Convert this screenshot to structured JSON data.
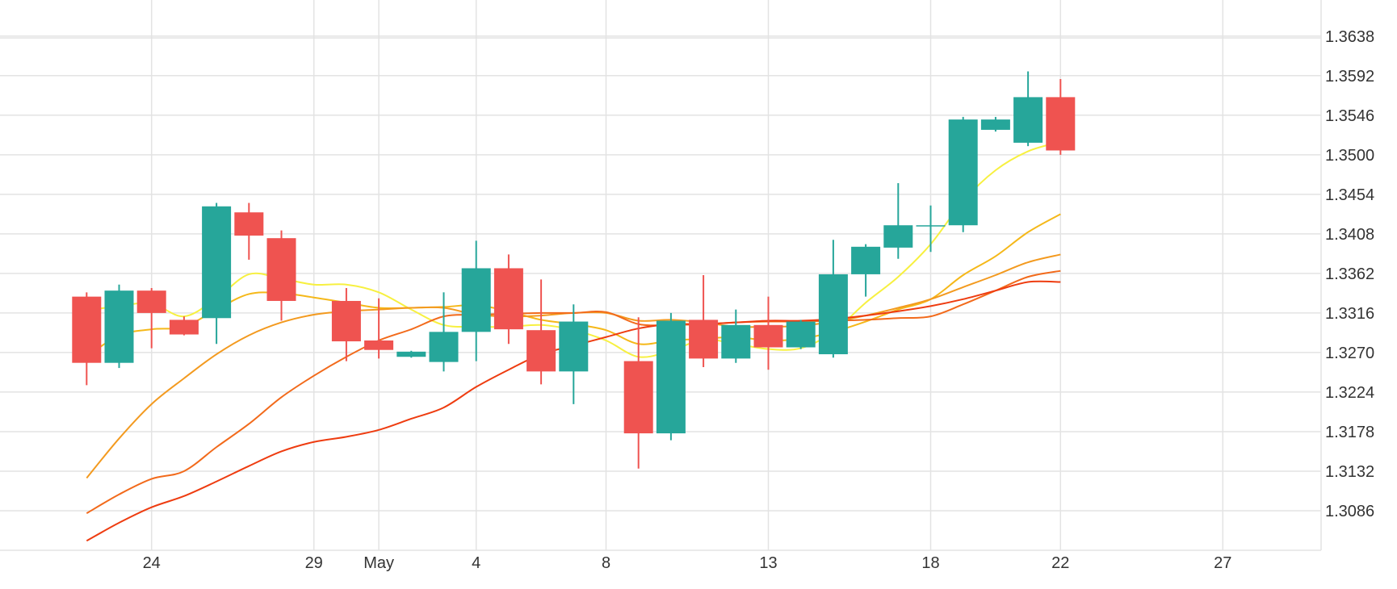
{
  "chart_data": {
    "type": "candlestick",
    "title": "",
    "xlabel": "",
    "ylabel": "",
    "ylim": [
      1.304,
      1.368
    ],
    "y_ticks": [
      1.3086,
      1.3132,
      1.3178,
      1.3224,
      1.327,
      1.3316,
      1.3362,
      1.3408,
      1.3454,
      1.35,
      1.3546,
      1.3592,
      1.3638
    ],
    "y_tick_labels": [
      "1.3086",
      "1.3132",
      "1.3178",
      "1.3224",
      "1.3270",
      "1.3316",
      "1.3362",
      "1.3408",
      "1.3454",
      "1.3500",
      "1.3546",
      "1.3592",
      "1.3638"
    ],
    "x_ticks": [
      {
        "label": "24",
        "day": 1
      },
      {
        "label": "29",
        "day": 6
      },
      {
        "label": "May",
        "day": 8
      },
      {
        "label": "4",
        "day": 11
      },
      {
        "label": "8",
        "day": 15
      },
      {
        "label": "13",
        "day": 20
      },
      {
        "label": "18",
        "day": 25
      },
      {
        "label": "22",
        "day": 29
      },
      {
        "label": "27",
        "day": 34
      }
    ],
    "grid": true,
    "colors": {
      "up": "#26a69a",
      "down": "#ef5350",
      "grid": "#e3e3e3",
      "axis_text": "#333333"
    },
    "candles": [
      {
        "day": -1,
        "o": 1.3335,
        "h": 1.334,
        "l": 1.3232,
        "c": 1.3258
      },
      {
        "day": 0,
        "o": 1.3258,
        "h": 1.3349,
        "l": 1.3252,
        "c": 1.3342
      },
      {
        "day": 1,
        "o": 1.3342,
        "h": 1.3345,
        "l": 1.3275,
        "c": 1.3316
      },
      {
        "day": 2,
        "o": 1.3308,
        "h": 1.3312,
        "l": 1.329,
        "c": 1.3291
      },
      {
        "day": 3,
        "o": 1.331,
        "h": 1.3444,
        "l": 1.328,
        "c": 1.344
      },
      {
        "day": 4,
        "o": 1.3433,
        "h": 1.3444,
        "l": 1.3378,
        "c": 1.3406
      },
      {
        "day": 5,
        "o": 1.3403,
        "h": 1.3412,
        "l": 1.3307,
        "c": 1.333
      },
      {
        "day": 7,
        "o": 1.333,
        "h": 1.3345,
        "l": 1.326,
        "c": 1.3283
      },
      {
        "day": 8,
        "o": 1.3284,
        "h": 1.3333,
        "l": 1.3263,
        "c": 1.3273
      },
      {
        "day": 9,
        "o": 1.3265,
        "h": 1.3272,
        "l": 1.3264,
        "c": 1.3271
      },
      {
        "day": 10,
        "o": 1.3259,
        "h": 1.334,
        "l": 1.3248,
        "c": 1.3294
      },
      {
        "day": 11,
        "o": 1.3294,
        "h": 1.34,
        "l": 1.326,
        "c": 1.3368
      },
      {
        "day": 12,
        "o": 1.3368,
        "h": 1.3384,
        "l": 1.328,
        "c": 1.3297
      },
      {
        "day": 13,
        "o": 1.3296,
        "h": 1.3355,
        "l": 1.3233,
        "c": 1.3248
      },
      {
        "day": 14,
        "o": 1.3248,
        "h": 1.3326,
        "l": 1.321,
        "c": 1.3306
      },
      {
        "day": 16,
        "o": 1.326,
        "h": 1.3311,
        "l": 1.3135,
        "c": 1.3176
      },
      {
        "day": 17,
        "o": 1.3176,
        "h": 1.3316,
        "l": 1.3168,
        "c": 1.3307
      },
      {
        "day": 18,
        "o": 1.3308,
        "h": 1.336,
        "l": 1.3253,
        "c": 1.3263
      },
      {
        "day": 19,
        "o": 1.3263,
        "h": 1.332,
        "l": 1.3258,
        "c": 1.3302
      },
      {
        "day": 20,
        "o": 1.3302,
        "h": 1.3335,
        "l": 1.325,
        "c": 1.3276
      },
      {
        "day": 21,
        "o": 1.3276,
        "h": 1.3308,
        "l": 1.3274,
        "c": 1.3306
      },
      {
        "day": 22,
        "o": 1.3268,
        "h": 1.3401,
        "l": 1.3264,
        "c": 1.3361
      },
      {
        "day": 23,
        "o": 1.3361,
        "h": 1.3396,
        "l": 1.3335,
        "c": 1.3393
      },
      {
        "day": 24,
        "o": 1.3392,
        "h": 1.3467,
        "l": 1.3379,
        "c": 1.3418
      },
      {
        "day": 25,
        "o": 1.3418,
        "h": 1.3441,
        "l": 1.3387,
        "c": 1.3418
      },
      {
        "day": 26,
        "o": 1.3418,
        "h": 1.3544,
        "l": 1.341,
        "c": 1.3541
      },
      {
        "day": 27,
        "o": 1.3529,
        "h": 1.3544,
        "l": 1.3527,
        "c": 1.3541
      },
      {
        "day": 28,
        "o": 1.3514,
        "h": 1.3597,
        "l": 1.351,
        "c": 1.3567
      },
      {
        "day": 29,
        "o": 1.3567,
        "h": 1.3588,
        "l": 1.35,
        "c": 1.3505
      }
    ],
    "series": [
      {
        "color": "#f7f040",
        "points": [
          [
            -1,
            1.3319
          ],
          [
            0,
            1.3324
          ],
          [
            1,
            1.3327
          ],
          [
            2,
            1.3312
          ],
          [
            3,
            1.3333
          ],
          [
            4,
            1.3361
          ],
          [
            5,
            1.3356
          ],
          [
            6,
            1.3349
          ],
          [
            7,
            1.3349
          ],
          [
            8,
            1.334
          ],
          [
            9,
            1.332
          ],
          [
            10,
            1.3302
          ],
          [
            11,
            1.33
          ],
          [
            12,
            1.33
          ],
          [
            13,
            1.3302
          ],
          [
            14,
            1.3296
          ],
          [
            15,
            1.3284
          ],
          [
            16,
            1.3265
          ],
          [
            17,
            1.3272
          ],
          [
            18,
            1.3285
          ],
          [
            19,
            1.328
          ],
          [
            20,
            1.3274
          ],
          [
            21,
            1.3275
          ],
          [
            22,
            1.3294
          ],
          [
            23,
            1.3328
          ],
          [
            24,
            1.3358
          ],
          [
            25,
            1.3396
          ],
          [
            26,
            1.3446
          ],
          [
            27,
            1.3482
          ],
          [
            28,
            1.3504
          ],
          [
            29,
            1.3515
          ]
        ]
      },
      {
        "color": "#f5b819",
        "points": [
          [
            -1,
            1.3265
          ],
          [
            0,
            1.329
          ],
          [
            1,
            1.3297
          ],
          [
            2,
            1.33
          ],
          [
            3,
            1.332
          ],
          [
            4,
            1.3338
          ],
          [
            5,
            1.3339
          ],
          [
            6,
            1.3334
          ],
          [
            7,
            1.3328
          ],
          [
            8,
            1.3322
          ],
          [
            9,
            1.3322
          ],
          [
            10,
            1.3323
          ],
          [
            11,
            1.3325
          ],
          [
            12,
            1.3318
          ],
          [
            13,
            1.3308
          ],
          [
            14,
            1.3303
          ],
          [
            15,
            1.3296
          ],
          [
            16,
            1.328
          ],
          [
            17,
            1.3284
          ],
          [
            18,
            1.3286
          ],
          [
            19,
            1.3288
          ],
          [
            20,
            1.3284
          ],
          [
            21,
            1.3286
          ],
          [
            22,
            1.3294
          ],
          [
            23,
            1.3306
          ],
          [
            24,
            1.332
          ],
          [
            25,
            1.3332
          ],
          [
            26,
            1.336
          ],
          [
            27,
            1.3382
          ],
          [
            28,
            1.341
          ],
          [
            29,
            1.3431
          ]
        ]
      },
      {
        "color": "#f39a1f",
        "points": [
          [
            -1,
            1.3124
          ],
          [
            0,
            1.317
          ],
          [
            1,
            1.321
          ],
          [
            2,
            1.324
          ],
          [
            3,
            1.3268
          ],
          [
            4,
            1.329
          ],
          [
            5,
            1.3305
          ],
          [
            6,
            1.3314
          ],
          [
            7,
            1.3318
          ],
          [
            8,
            1.332
          ],
          [
            9,
            1.3322
          ],
          [
            10,
            1.3322
          ],
          [
            11,
            1.3314
          ],
          [
            12,
            1.3312
          ],
          [
            13,
            1.3313
          ],
          [
            14,
            1.3316
          ],
          [
            15,
            1.3316
          ],
          [
            16,
            1.3307
          ],
          [
            17,
            1.3308
          ],
          [
            18,
            1.3305
          ],
          [
            19,
            1.33
          ],
          [
            20,
            1.33
          ],
          [
            21,
            1.3301
          ],
          [
            22,
            1.3306
          ],
          [
            23,
            1.3313
          ],
          [
            24,
            1.3322
          ],
          [
            25,
            1.3332
          ],
          [
            26,
            1.3346
          ],
          [
            27,
            1.336
          ],
          [
            28,
            1.3375
          ],
          [
            29,
            1.3384
          ]
        ]
      },
      {
        "color": "#f26a1b",
        "points": [
          [
            -1,
            1.3083
          ],
          [
            0,
            1.3105
          ],
          [
            1,
            1.3123
          ],
          [
            2,
            1.3132
          ],
          [
            3,
            1.316
          ],
          [
            4,
            1.3187
          ],
          [
            5,
            1.3218
          ],
          [
            6,
            1.3243
          ],
          [
            7,
            1.3265
          ],
          [
            8,
            1.3284
          ],
          [
            9,
            1.3297
          ],
          [
            10,
            1.3312
          ],
          [
            11,
            1.3314
          ],
          [
            12,
            1.3315
          ],
          [
            13,
            1.3316
          ],
          [
            14,
            1.3316
          ],
          [
            15,
            1.3317
          ],
          [
            16,
            1.3303
          ],
          [
            17,
            1.3302
          ],
          [
            18,
            1.3303
          ],
          [
            19,
            1.3305
          ],
          [
            20,
            1.3306
          ],
          [
            21,
            1.3306
          ],
          [
            22,
            1.3307
          ],
          [
            23,
            1.3308
          ],
          [
            24,
            1.331
          ],
          [
            25,
            1.3312
          ],
          [
            26,
            1.3326
          ],
          [
            27,
            1.3342
          ],
          [
            28,
            1.3358
          ],
          [
            29,
            1.3365
          ]
        ]
      },
      {
        "color": "#ee3c10",
        "points": [
          [
            -1,
            1.3051
          ],
          [
            0,
            1.3072
          ],
          [
            1,
            1.309
          ],
          [
            2,
            1.3103
          ],
          [
            3,
            1.312
          ],
          [
            4,
            1.3138
          ],
          [
            5,
            1.3155
          ],
          [
            6,
            1.3166
          ],
          [
            7,
            1.3172
          ],
          [
            8,
            1.318
          ],
          [
            9,
            1.3193
          ],
          [
            10,
            1.3206
          ],
          [
            11,
            1.323
          ],
          [
            12,
            1.325
          ],
          [
            13,
            1.3268
          ],
          [
            14,
            1.3278
          ],
          [
            15,
            1.3288
          ],
          [
            16,
            1.3298
          ],
          [
            17,
            1.3303
          ],
          [
            18,
            1.3303
          ],
          [
            19,
            1.3305
          ],
          [
            20,
            1.3307
          ],
          [
            21,
            1.3307
          ],
          [
            22,
            1.3309
          ],
          [
            23,
            1.3313
          ],
          [
            24,
            1.3318
          ],
          [
            25,
            1.3324
          ],
          [
            26,
            1.3332
          ],
          [
            27,
            1.3342
          ],
          [
            28,
            1.3352
          ],
          [
            29,
            1.3352
          ]
        ]
      }
    ]
  }
}
